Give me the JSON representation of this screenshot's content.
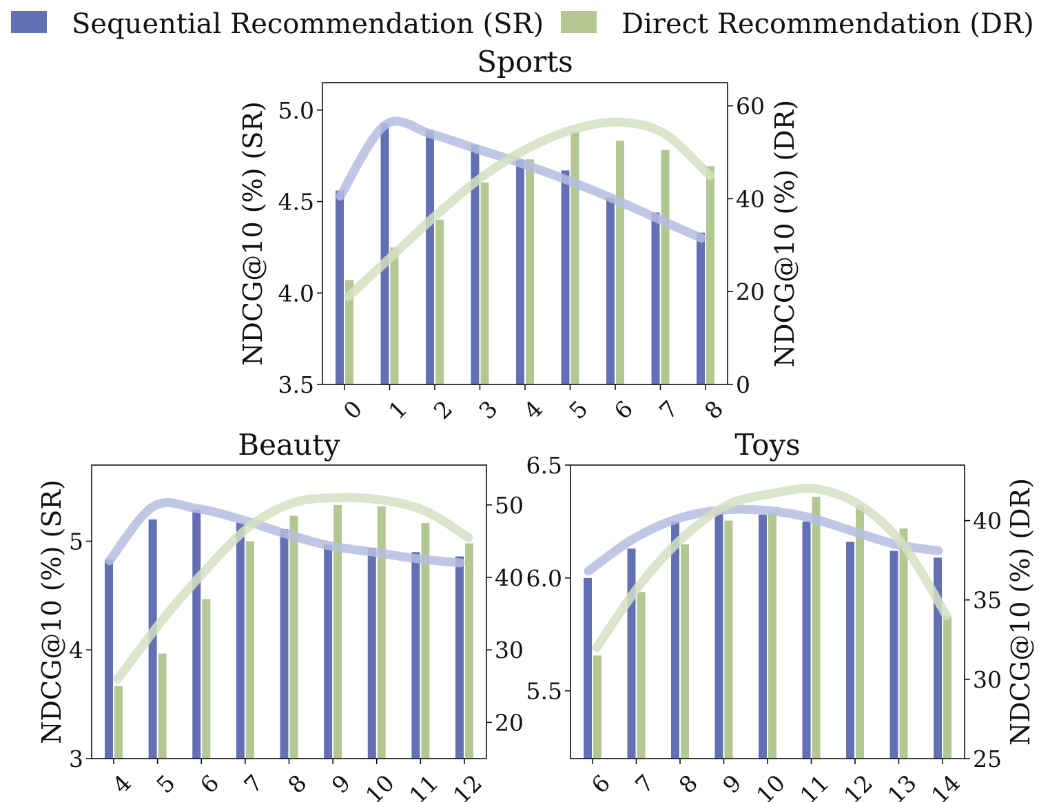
{
  "legend": {
    "sr": {
      "label": "Sequential Recommendation",
      "abbr": "(SR)",
      "color": "#6470b4"
    },
    "dr": {
      "label": "Direct Recommendation",
      "abbr": "(DR)",
      "color": "#b3c793"
    }
  },
  "chart_data": [
    {
      "type": "bar",
      "title": "Sports",
      "categories": [
        "0",
        "1",
        "2",
        "3",
        "4",
        "5",
        "6",
        "7",
        "8"
      ],
      "ylabel": "NDCG@10 (%) (SR)",
      "ylabel_right": "NDCG@10 (%) (DR)",
      "ylim": [
        3.5,
        5.15
      ],
      "yticks": [
        3.5,
        4.0,
        4.5,
        5.0
      ],
      "ytick_labels": [
        "3.5",
        "4.0",
        "4.5",
        "5.0"
      ],
      "ylim_right": [
        0,
        65
      ],
      "yticks_right": [
        0,
        20,
        40,
        60
      ],
      "series": [
        {
          "name": "Sequential Recommendation (SR)",
          "axis": "left",
          "values": [
            4.56,
            4.93,
            4.89,
            4.81,
            4.73,
            4.67,
            4.52,
            4.44,
            4.33
          ]
        },
        {
          "name": "Direct Recommendation (DR)",
          "axis": "right",
          "values": [
            22.5,
            29.5,
            35.5,
            43.5,
            48.5,
            54.5,
            52.5,
            50.5,
            47.0
          ]
        }
      ],
      "trend_sr": [
        4.53,
        4.92,
        4.87,
        4.79,
        4.71,
        4.62,
        4.52,
        4.41,
        4.3
      ],
      "trend_dr": [
        19,
        28,
        37,
        45,
        51,
        55,
        56.5,
        54,
        45
      ]
    },
    {
      "type": "bar",
      "title": "Beauty",
      "categories": [
        "4",
        "5",
        "6",
        "7",
        "8",
        "9",
        "10",
        "11",
        "12"
      ],
      "ylabel": "NDCG@10 (%) (SR)",
      "ylim": [
        3.0,
        5.7
      ],
      "yticks": [
        3,
        4,
        5
      ],
      "ytick_labels": [
        "3",
        "4",
        "5"
      ],
      "ylim_right": [
        15,
        55.5
      ],
      "yticks_right": [
        20,
        30,
        40,
        50
      ],
      "series": [
        {
          "name": "Sequential Recommendation (SR)",
          "axis": "left",
          "values": [
            4.83,
            5.2,
            5.29,
            5.17,
            5.11,
            4.97,
            4.94,
            4.9,
            4.86
          ]
        },
        {
          "name": "Direct Recommendation (DR)",
          "axis": "right",
          "values": [
            25.0,
            29.5,
            37.0,
            45.0,
            48.5,
            50.0,
            49.8,
            47.5,
            44.7
          ]
        }
      ],
      "trend_sr": [
        4.82,
        5.32,
        5.3,
        5.2,
        5.07,
        4.96,
        4.9,
        4.84,
        4.8
      ],
      "trend_dr": [
        26.0,
        34.0,
        41.0,
        47.0,
        50.3,
        51.0,
        50.7,
        49.2,
        45.5
      ]
    },
    {
      "type": "bar",
      "title": "Toys",
      "categories": [
        "6",
        "7",
        "8",
        "9",
        "10",
        "11",
        "12",
        "13",
        "14"
      ],
      "ylabel_right": "NDCG@10 (%) (DR)",
      "ylim": [
        5.2,
        6.5
      ],
      "yticks": [
        5.5,
        6.0,
        6.5
      ],
      "ytick_labels": [
        "5.5",
        "6.0",
        "6.5"
      ],
      "ylim_right": [
        25,
        43.5
      ],
      "yticks_right": [
        25,
        30,
        35,
        40
      ],
      "series": [
        {
          "name": "Sequential Recommendation (SR)",
          "axis": "left",
          "values": [
            6.0,
            6.13,
            6.25,
            6.31,
            6.28,
            6.25,
            6.16,
            6.12,
            6.09
          ]
        },
        {
          "name": "Direct Recommendation (DR)",
          "axis": "right",
          "values": [
            31.5,
            35.5,
            38.5,
            40.0,
            40.5,
            41.5,
            41.0,
            39.5,
            34.0
          ]
        }
      ],
      "trend_sr": [
        6.03,
        6.17,
        6.26,
        6.3,
        6.3,
        6.27,
        6.21,
        6.15,
        6.12
      ],
      "trend_dr": [
        32.0,
        36.0,
        39.0,
        41.0,
        41.7,
        42.0,
        41.0,
        38.5,
        34.0
      ]
    }
  ]
}
